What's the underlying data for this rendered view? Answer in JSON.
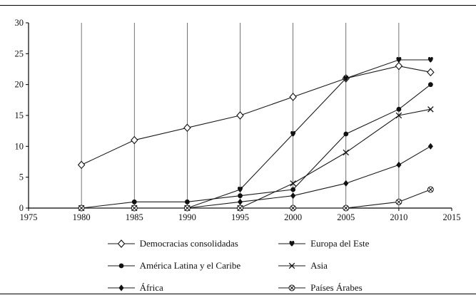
{
  "chart_data": {
    "type": "line",
    "title": "",
    "xlabel": "",
    "ylabel": "",
    "xlim": [
      1975,
      2015
    ],
    "ylim": [
      0,
      30
    ],
    "x_ticks": [
      1975,
      1980,
      1985,
      1990,
      1995,
      2000,
      2005,
      2010,
      2015
    ],
    "y_ticks": [
      0,
      5,
      10,
      15,
      20,
      25,
      30
    ],
    "gridlines": "vertical",
    "legend_position": "bottom",
    "x": [
      1980,
      1985,
      1990,
      1995,
      2000,
      2005,
      2010,
      2013
    ],
    "series": [
      {
        "name": "Democracias consolidadas",
        "marker": "open-diamond",
        "values": [
          7,
          11,
          13,
          15,
          18,
          21,
          23,
          22
        ]
      },
      {
        "name": "Europa del Este",
        "marker": "heart",
        "values": [
          0,
          0,
          0,
          3,
          12,
          21,
          24,
          24
        ]
      },
      {
        "name": "América Latina y el Caribe",
        "marker": "filled-circle",
        "values": [
          0,
          1,
          1,
          2,
          3,
          12,
          16,
          20
        ]
      },
      {
        "name": "Asia",
        "marker": "x-cross",
        "values": [
          0,
          0,
          0,
          0,
          4,
          9,
          15,
          16
        ]
      },
      {
        "name": "África",
        "marker": "filled-diamond",
        "values": [
          0,
          0,
          0,
          1,
          2,
          4,
          7,
          10
        ]
      },
      {
        "name": "Países Árabes",
        "marker": "circle-x",
        "values": [
          0,
          0,
          0,
          0,
          0,
          0,
          1,
          3
        ]
      }
    ]
  },
  "colors": {
    "line": "#1a1a1a",
    "grid": "#3a3a3a",
    "axis": "#000000",
    "background": "#ffffff"
  }
}
